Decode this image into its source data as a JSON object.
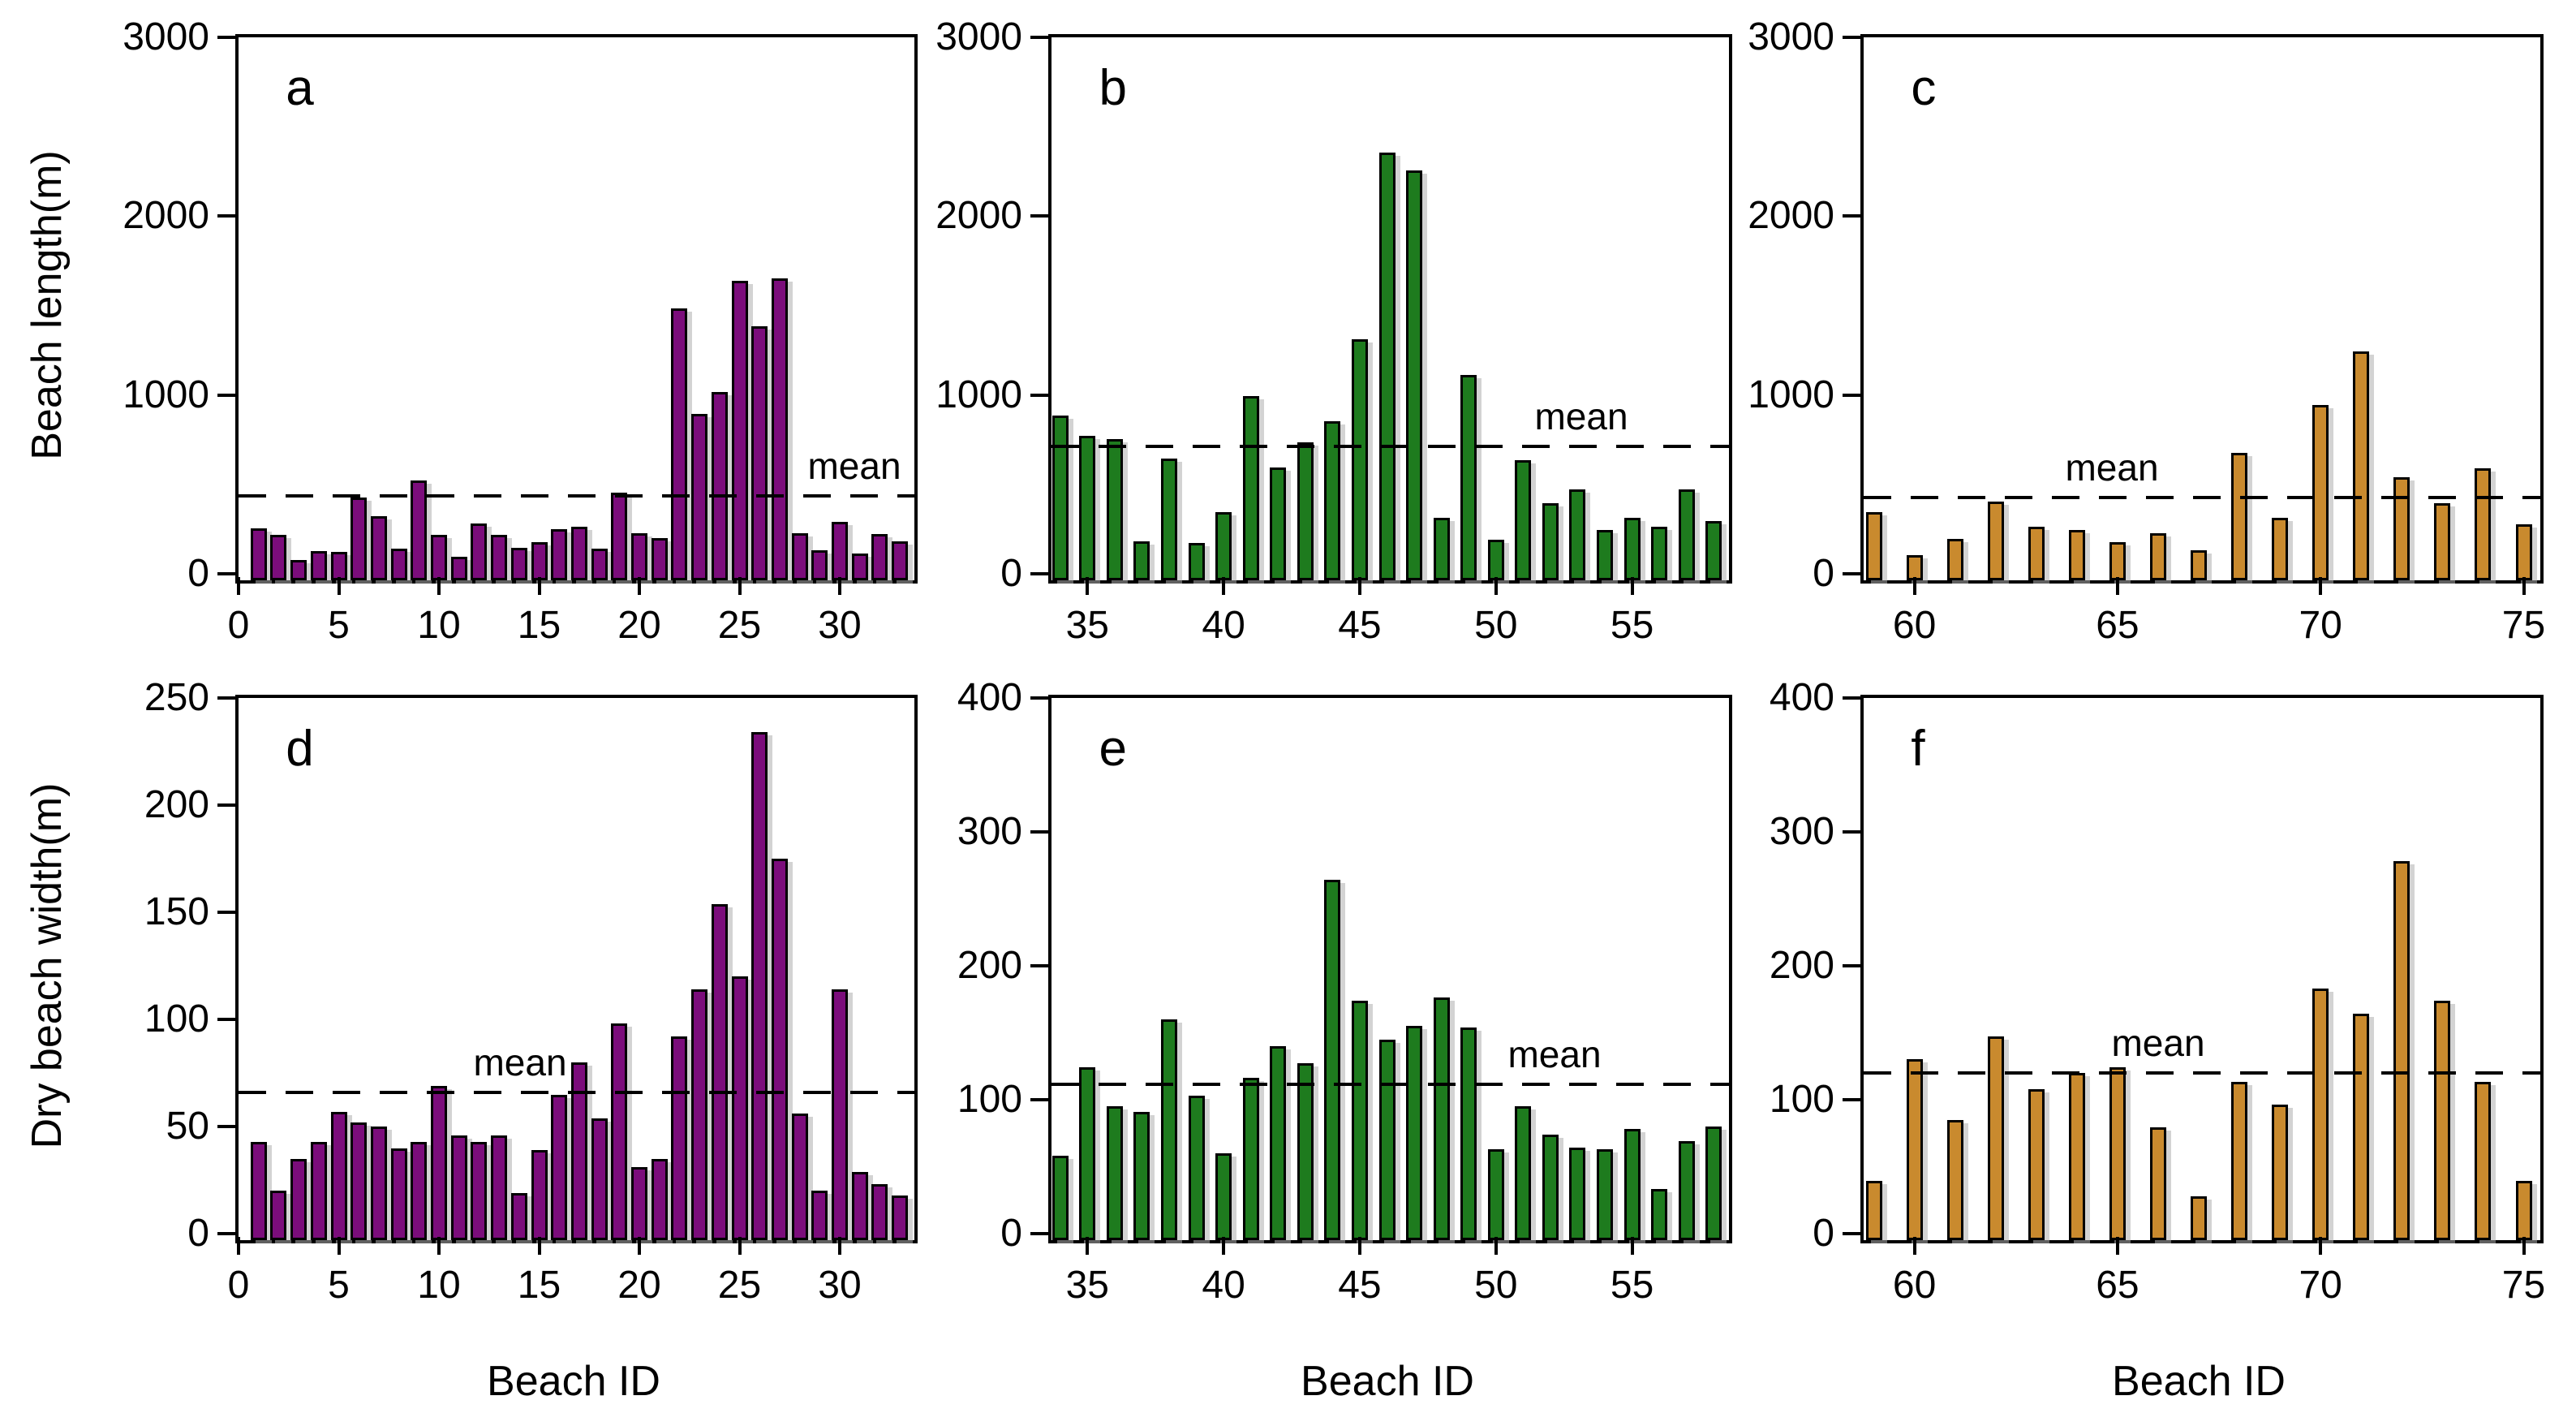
{
  "figure": {
    "xlabel": "Beach ID",
    "ylabel_top": "Beach length(m)",
    "ylabel_bottom": "Dry beach width(m)",
    "mean_label": "mean",
    "background": "#ffffff",
    "axis_color": "#000000"
  },
  "chart_data": [
    {
      "type": "bar",
      "panel": "a",
      "row": 0,
      "col": 0,
      "color": "#7B0D7B",
      "ylabel": "Beach length(m)",
      "xlabel": "Beach ID",
      "ylim": [
        0,
        3000
      ],
      "yticks": [
        0,
        1000,
        2000,
        3000
      ],
      "xlim": [
        0,
        33.4
      ],
      "xticks": [
        0,
        5,
        10,
        15,
        20,
        25,
        30
      ],
      "ids": [
        1,
        2,
        3,
        4,
        5,
        6,
        7,
        8,
        9,
        10,
        11,
        12,
        13,
        14,
        15,
        16,
        17,
        18,
        19,
        20,
        21,
        22,
        23,
        24,
        25,
        26,
        27,
        28,
        29,
        30,
        31,
        32,
        33
      ],
      "values": [
        290,
        255,
        115,
        165,
        160,
        465,
        360,
        175,
        560,
        255,
        130,
        320,
        255,
        180,
        215,
        285,
        300,
        175,
        490,
        265,
        235,
        1520,
        930,
        1055,
        1675,
        1420,
        1690,
        265,
        170,
        325,
        150,
        260,
        220
      ],
      "mean_label_x": 0.92,
      "grid": false,
      "mean_line": "dashed"
    },
    {
      "type": "bar",
      "panel": "b",
      "row": 0,
      "col": 1,
      "color": "#1E7B1E",
      "ylabel": "Beach length(m)",
      "xlabel": "Beach ID",
      "ylim": [
        0,
        3000
      ],
      "yticks": [
        0,
        1000,
        2000,
        3000
      ],
      "xlim": [
        33.68,
        58.32
      ],
      "xticks": [
        35,
        40,
        45,
        50,
        55
      ],
      "ids": [
        34,
        35,
        36,
        37,
        38,
        39,
        40,
        41,
        42,
        43,
        44,
        45,
        46,
        47,
        48,
        49,
        50,
        51,
        52,
        53,
        54,
        55,
        56,
        57,
        58
      ],
      "values": [
        920,
        810,
        790,
        220,
        680,
        210,
        380,
        1030,
        630,
        770,
        890,
        1350,
        2390,
        2290,
        350,
        1150,
        225,
        670,
        430,
        510,
        280,
        350,
        300,
        510,
        330
      ],
      "mean_label_x": 0.79,
      "grid": false,
      "mean_line": "dashed"
    },
    {
      "type": "bar",
      "panel": "c",
      "row": 0,
      "col": 2,
      "color": "#C98A2E",
      "ylabel": "Beach length(m)",
      "xlabel": "Beach ID",
      "ylim": [
        0,
        3000
      ],
      "yticks": [
        0,
        1000,
        2000,
        3000
      ],
      "xlim": [
        58.75,
        75.25
      ],
      "xticks": [
        60,
        65,
        70,
        75
      ],
      "ids": [
        59,
        60,
        61,
        62,
        63,
        64,
        65,
        66,
        67,
        68,
        69,
        70,
        71,
        72,
        73,
        74,
        75
      ],
      "values": [
        380,
        140,
        230,
        440,
        300,
        280,
        215,
        265,
        170,
        715,
        350,
        980,
        1280,
        575,
        430,
        625,
        315
      ],
      "mean_label_x": 0.37,
      "grid": false,
      "mean_line": "dashed"
    },
    {
      "type": "bar",
      "panel": "d",
      "row": 1,
      "col": 0,
      "color": "#7B0D7B",
      "ylabel": "Dry beach width(m)",
      "xlabel": "Beach ID",
      "ylim": [
        0,
        250
      ],
      "yticks": [
        0,
        50,
        100,
        150,
        200,
        250
      ],
      "xlim": [
        0,
        33.4
      ],
      "xticks": [
        0,
        5,
        10,
        15,
        20,
        25,
        30
      ],
      "ids": [
        1,
        2,
        3,
        4,
        5,
        6,
        7,
        8,
        9,
        10,
        11,
        12,
        13,
        14,
        15,
        16,
        17,
        18,
        19,
        20,
        21,
        22,
        23,
        24,
        25,
        26,
        27,
        28,
        29,
        30,
        31,
        32,
        33
      ],
      "values": [
        46,
        23,
        38,
        46,
        60,
        55,
        53,
        43,
        46,
        72,
        49,
        46,
        49,
        22,
        42,
        68,
        83,
        57,
        101,
        34,
        38,
        95,
        117,
        157,
        123,
        237,
        178,
        59,
        23,
        117,
        32,
        26,
        21
      ],
      "mean_label_x": 0.42,
      "grid": false,
      "mean_line": "dashed"
    },
    {
      "type": "bar",
      "panel": "e",
      "row": 1,
      "col": 1,
      "color": "#1E7B1E",
      "ylabel": "Dry beach width(m)",
      "xlabel": "Beach ID",
      "ylim": [
        0,
        400
      ],
      "yticks": [
        0,
        100,
        200,
        300,
        400
      ],
      "xlim": [
        33.68,
        58.32
      ],
      "xticks": [
        35,
        40,
        45,
        50,
        55
      ],
      "ids": [
        34,
        35,
        36,
        37,
        38,
        39,
        40,
        41,
        42,
        43,
        44,
        45,
        46,
        47,
        48,
        49,
        50,
        51,
        52,
        53,
        54,
        55,
        56,
        57,
        58
      ],
      "values": [
        63,
        129,
        100,
        96,
        165,
        108,
        65,
        121,
        145,
        132,
        269,
        179,
        150,
        160,
        181,
        159,
        68,
        100,
        79,
        69,
        68,
        83,
        38,
        74,
        85
      ],
      "mean_label_x": 0.75,
      "grid": false,
      "mean_line": "dashed"
    },
    {
      "type": "bar",
      "panel": "f",
      "row": 1,
      "col": 2,
      "color": "#C98A2E",
      "ylabel": "Dry beach width(m)",
      "xlabel": "Beach ID",
      "ylim": [
        0,
        400
      ],
      "yticks": [
        0,
        100,
        200,
        300,
        400
      ],
      "xlim": [
        58.75,
        75.25
      ],
      "xticks": [
        60,
        65,
        70,
        75
      ],
      "ids": [
        59,
        60,
        61,
        62,
        63,
        64,
        65,
        66,
        67,
        68,
        69,
        70,
        71,
        72,
        73,
        74,
        75
      ],
      "values": [
        44,
        135,
        90,
        152,
        113,
        125,
        129,
        84,
        33,
        118,
        101,
        188,
        169,
        283,
        179,
        118,
        44
      ],
      "mean_label_x": 0.44,
      "grid": false,
      "mean_line": "dashed"
    }
  ]
}
